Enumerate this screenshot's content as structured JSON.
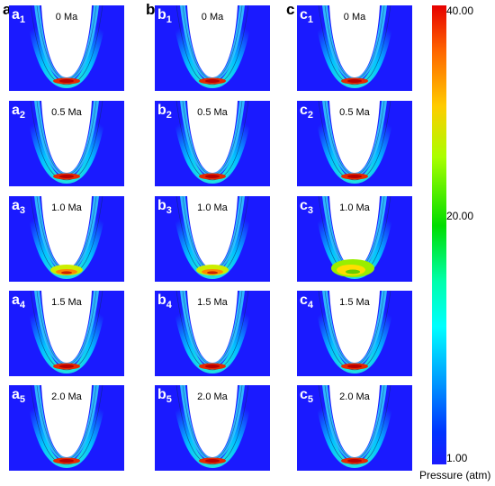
{
  "columns": [
    "a",
    "b",
    "c"
  ],
  "panels": [
    {
      "letter": "a",
      "index": "1",
      "speed": "0 Ma"
    },
    {
      "letter": "a",
      "index": "2",
      "speed": "0.5 Ma"
    },
    {
      "letter": "a",
      "index": "3",
      "speed": "1.0 Ma"
    },
    {
      "letter": "a",
      "index": "4",
      "speed": "1.5 Ma"
    },
    {
      "letter": "a",
      "index": "5",
      "speed": "2.0 Ma"
    },
    {
      "letter": "b",
      "index": "1",
      "speed": "0 Ma"
    },
    {
      "letter": "b",
      "index": "2",
      "speed": "0.5 Ma"
    },
    {
      "letter": "b",
      "index": "3",
      "speed": "1.0 Ma"
    },
    {
      "letter": "b",
      "index": "4",
      "speed": "1.5 Ma"
    },
    {
      "letter": "b",
      "index": "5",
      "speed": "2.0 Ma"
    },
    {
      "letter": "c",
      "index": "1",
      "speed": "0 Ma"
    },
    {
      "letter": "c",
      "index": "2",
      "speed": "0.5 Ma"
    },
    {
      "letter": "c",
      "index": "3",
      "speed": "1.0 Ma"
    },
    {
      "letter": "c",
      "index": "4",
      "speed": "1.5 Ma"
    },
    {
      "letter": "c",
      "index": "5",
      "speed": "2.0 Ma"
    }
  ],
  "colorbar": {
    "max_label": "40.00",
    "mid_label": "20.00",
    "min_label": "1.00",
    "title": "Pressure (atm)",
    "colors": {
      "low": "#1a1aff",
      "high": "#e60000"
    }
  }
}
